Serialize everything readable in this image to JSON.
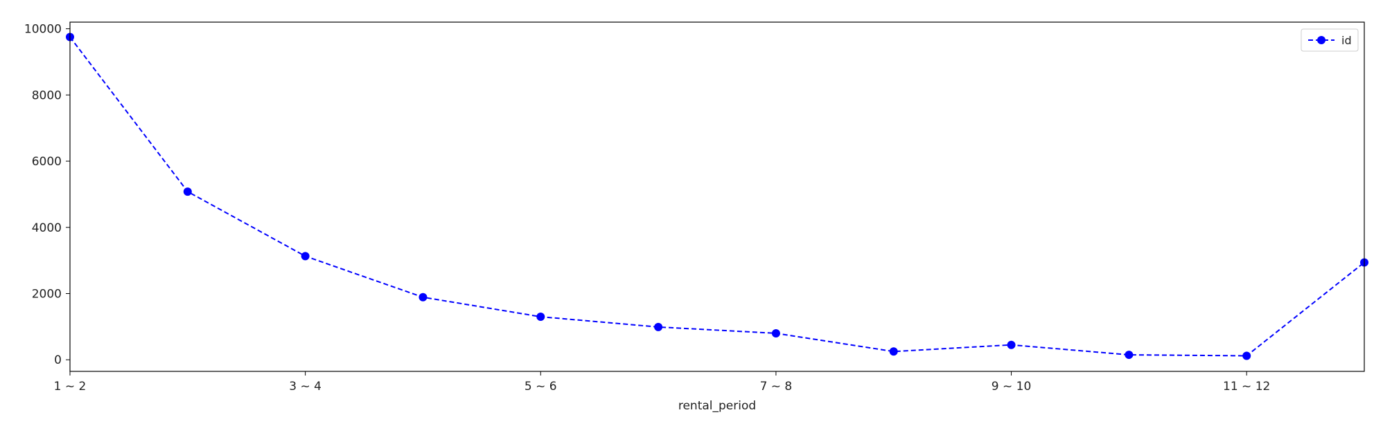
{
  "chart_data": {
    "type": "line",
    "x_tick_labels": [
      "1 ~ 2",
      "3 ~ 4",
      "5 ~ 6",
      "7 ~ 8",
      "9 ~ 10",
      "11 ~ 12"
    ],
    "x": [
      0,
      1,
      2,
      3,
      4,
      5,
      6,
      7,
      8,
      9,
      10,
      11
    ],
    "xlim": [
      0,
      11
    ],
    "y_ticks": [
      0,
      2000,
      4000,
      6000,
      8000,
      10000
    ],
    "ylim": [
      -350,
      10200
    ],
    "series": [
      {
        "name": "id",
        "values": [
          9750,
          5080,
          3130,
          1890,
          1300,
          990,
          800,
          250,
          450,
          150,
          120,
          2940
        ],
        "color": "#0000ff",
        "line_style": "dashed",
        "marker": "circle"
      }
    ],
    "xlabel": "rental_period",
    "ylabel": "",
    "grid": false,
    "legend_position": "top-right"
  }
}
